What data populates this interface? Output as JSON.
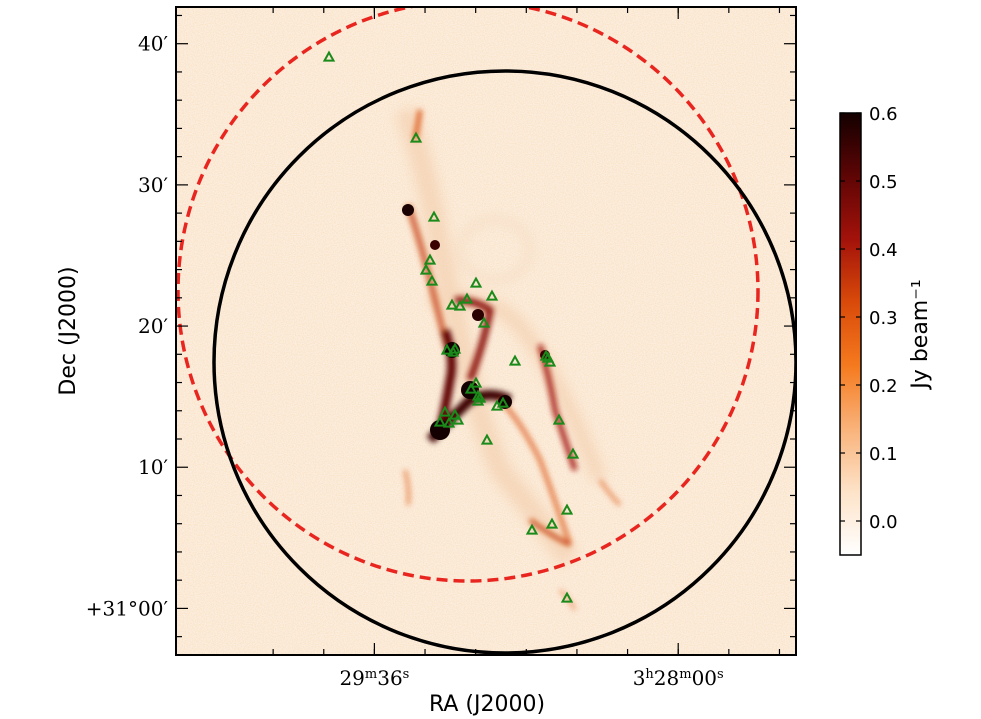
{
  "chart_data": {
    "type": "heatmap",
    "title": "",
    "xlabel": "RA (J2000)",
    "ylabel": "Dec (J2000)",
    "x_ticks": [
      {
        "label_html": "29<tspan baseline-shift=\"super\" font-size=\"13\">m</tspan>36<tspan baseline-shift=\"super\" font-size=\"13\">s</tspan>",
        "label": "29m36s"
      },
      {
        "label_html": "3<tspan baseline-shift=\"super\" font-size=\"13\">h</tspan>28<tspan baseline-shift=\"super\" font-size=\"13\">m</tspan>00<tspan baseline-shift=\"super\" font-size=\"13\">s</tspan>",
        "label": "3h28m00s"
      }
    ],
    "y_ticks": [
      {
        "value": 40,
        "label": "40′"
      },
      {
        "value": 30,
        "label": "30′"
      },
      {
        "value": 20,
        "label": "20′"
      },
      {
        "value": 10,
        "label": "10′"
      },
      {
        "value": 0,
        "label": "+31°00′"
      }
    ],
    "ylim_arcmin": [
      -3.3,
      42.6
    ],
    "colorbar": {
      "label": "Jy beam⁻¹",
      "ticks": [
        "0.6",
        "0.5",
        "0.4",
        "0.3",
        "0.2",
        "0.1",
        "0.0"
      ],
      "range": [
        -0.05,
        0.6
      ],
      "colormap": [
        "#ffffff",
        "#fde3c8",
        "#f9b27a",
        "#f57a1e",
        "#d94a0a",
        "#a3120a",
        "#5e0505",
        "#140000"
      ]
    },
    "overlays": [
      {
        "name": "",
        "shape": "circle",
        "style": "dashed",
        "color": "#e8251f"
      },
      {
        "name": "",
        "shape": "circle",
        "style": "solid",
        "color": "#000000"
      }
    ],
    "markers": {
      "symbol": "triangle",
      "color": "#1a8a1a",
      "count": 38
    }
  }
}
